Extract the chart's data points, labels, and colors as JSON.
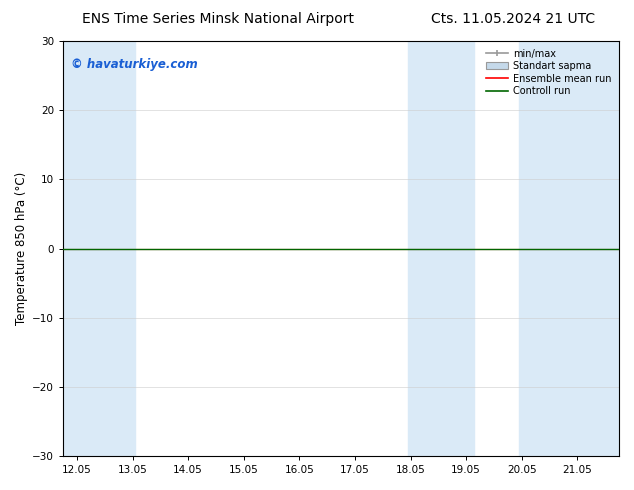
{
  "title_left": "ENS Time Series Minsk National Airport",
  "title_right": "Cts. 11.05.2024 21 UTC",
  "ylabel": "Temperature 850 hPa (°C)",
  "xlim_labels": [
    "12.05",
    "13.05",
    "14.05",
    "15.05",
    "16.05",
    "17.05",
    "18.05",
    "19.05",
    "20.05",
    "21.05"
  ],
  "xlim": [
    11.75,
    21.75
  ],
  "xticks": [
    12.0,
    13.0,
    14.0,
    15.0,
    16.0,
    17.0,
    18.0,
    19.0,
    20.0,
    21.0
  ],
  "ylim": [
    -30,
    30
  ],
  "yticks": [
    -30,
    -20,
    -10,
    0,
    10,
    20,
    30
  ],
  "watermark": "© havaturkiye.com",
  "watermark_color": "#1a5fd4",
  "bg_color": "#ffffff",
  "plot_bg_color": "#ffffff",
  "shaded_color": "#daeaf7",
  "shaded_regions": [
    [
      11.75,
      12.4
    ],
    [
      12.4,
      13.05
    ],
    [
      17.95,
      18.5
    ],
    [
      18.5,
      19.15
    ],
    [
      19.95,
      20.5
    ],
    [
      20.5,
      21.75
    ]
  ],
  "green_line_y": 0.0,
  "red_line_y": 0.0,
  "legend_labels": [
    "min/max",
    "Standart sapma",
    "Ensemble mean run",
    "Controll run"
  ],
  "legend_colors_hex": [
    "#999999",
    "#c5d9ea",
    "#ff0000",
    "#006600"
  ],
  "zero_line_color": "#000000",
  "tick_label_fontsize": 7.5,
  "title_fontsize": 10,
  "axis_label_fontsize": 8.5
}
